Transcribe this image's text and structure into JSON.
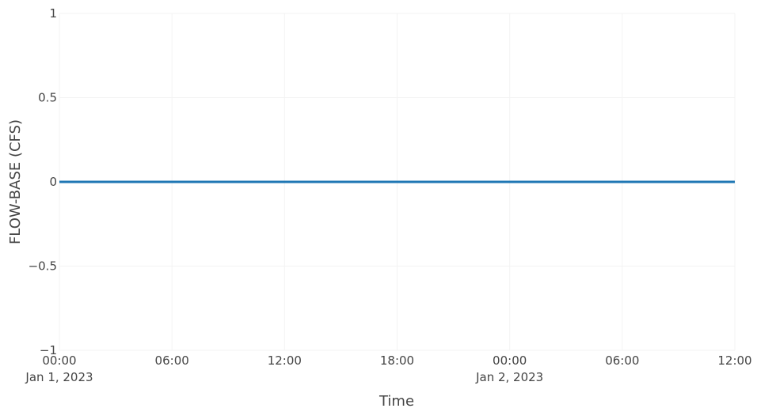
{
  "chart_data": {
    "type": "line",
    "title": "",
    "xlabel": "Time",
    "ylabel": "FLOW-BASE (CFS)",
    "x_tick_labels": [
      {
        "time": "00:00",
        "date": "Jan 1, 2023"
      },
      {
        "time": "06:00",
        "date": ""
      },
      {
        "time": "12:00",
        "date": ""
      },
      {
        "time": "18:00",
        "date": ""
      },
      {
        "time": "00:00",
        "date": "Jan 2, 2023"
      },
      {
        "time": "06:00",
        "date": ""
      },
      {
        "time": "12:00",
        "date": ""
      }
    ],
    "y_tick_labels": [
      "1",
      "0.5",
      "0",
      "−0.5",
      "−1"
    ],
    "x_tick_values": [
      "2023-01-01T00:00",
      "2023-01-01T06:00",
      "2023-01-01T12:00",
      "2023-01-01T18:00",
      "2023-01-02T00:00",
      "2023-01-02T06:00",
      "2023-01-02T12:00"
    ],
    "y_tick_values": [
      1,
      0.5,
      0,
      -0.5,
      -1
    ],
    "xlim": [
      "2023-01-01T00:00",
      "2023-01-02T12:00"
    ],
    "ylim": [
      -1,
      1
    ],
    "grid": true,
    "legend": "none",
    "series": [
      {
        "x": [
          "2023-01-01T00:00",
          "2023-01-02T12:00"
        ],
        "y": [
          0,
          0
        ],
        "color": "#1f77b4"
      }
    ],
    "colors": {
      "line": "#1f77b4",
      "grid": "#f3f3f3",
      "text": "#444444"
    }
  }
}
